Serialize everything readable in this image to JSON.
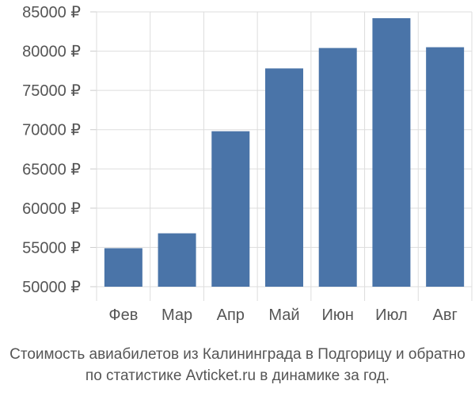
{
  "chart_data": {
    "type": "bar",
    "categories": [
      "Фев",
      "Мар",
      "Апр",
      "Май",
      "Июн",
      "Июл",
      "Авг"
    ],
    "values": [
      54900,
      56800,
      69800,
      77800,
      80400,
      84200,
      80500
    ],
    "ylim": [
      50000,
      85000
    ],
    "yticks": [
      50000,
      55000,
      60000,
      65000,
      70000,
      75000,
      80000,
      85000
    ],
    "ytick_labels": [
      "50000 ₽",
      "55000 ₽",
      "60000 ₽",
      "65000 ₽",
      "70000 ₽",
      "75000 ₽",
      "80000 ₽",
      "85000 ₽"
    ],
    "grid": true,
    "bar_color": "#4a74a8",
    "grid_color": "#dddddd"
  },
  "caption": {
    "line1": "Стоимость авиабилетов из Калининграда в Подгорицу и обратно",
    "line2": "по статистике Avticket.ru в динамике за год."
  }
}
